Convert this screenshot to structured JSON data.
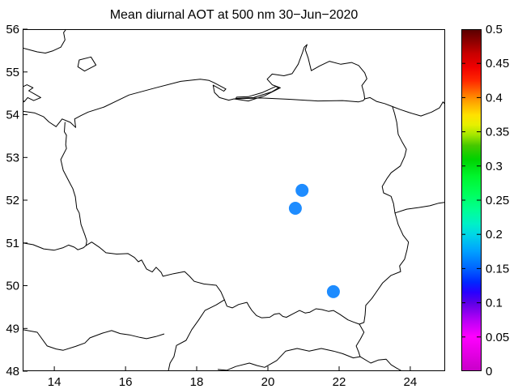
{
  "title": "Mean diurnal AOT at 500 nm 30−Jun−2020",
  "chart_data": {
    "type": "scatter",
    "subtype": "geographic-map-scatter",
    "region": "Poland with Baltic coast and neighbouring country borders",
    "xlabel": "",
    "ylabel": "",
    "xlim": [
      13.11,
      24.98
    ],
    "ylim": [
      48,
      56
    ],
    "xticks": [
      "14",
      "16",
      "18",
      "20",
      "22",
      "24"
    ],
    "xtick_values": [
      14,
      16,
      18,
      20,
      22,
      24
    ],
    "yticks": [
      "56",
      "55",
      "54",
      "53",
      "52",
      "51",
      "50",
      "49",
      "48"
    ],
    "ytick_values": [
      56,
      55,
      54,
      53,
      52,
      51,
      50,
      49,
      48
    ],
    "grid": false,
    "marker_color": "#1E8CFF",
    "marker_radius_px": 8,
    "points": [
      {
        "lon": 20.96,
        "lat": 52.23,
        "aot": 0.15
      },
      {
        "lon": 20.77,
        "lat": 51.81,
        "aot": 0.15
      },
      {
        "lon": 21.84,
        "lat": 49.86,
        "aot": 0.15
      }
    ],
    "colorbar": {
      "min": 0,
      "max": 0.5,
      "tick_labels": [
        "0.5",
        "0.45",
        "0.4",
        "0.35",
        "0.3",
        "0.25",
        "0.2",
        "0.15",
        "0.1",
        "0.05",
        "0"
      ],
      "tick_values": [
        0.5,
        0.45,
        0.4,
        0.35,
        0.3,
        0.25,
        0.2,
        0.15,
        0.1,
        0.05,
        0
      ],
      "position": "right",
      "gradient_stops": [
        [
          0.0,
          "#C800C8"
        ],
        [
          0.05,
          "#FF00FF"
        ],
        [
          0.075,
          "#B400F5"
        ],
        [
          0.1,
          "#5A00E6"
        ],
        [
          0.115,
          "#2800FF"
        ],
        [
          0.13,
          "#0028FF"
        ],
        [
          0.15,
          "#0064FF"
        ],
        [
          0.175,
          "#00A0FF"
        ],
        [
          0.2,
          "#00D7E6"
        ],
        [
          0.215,
          "#00F0C8"
        ],
        [
          0.235,
          "#00FF96"
        ],
        [
          0.26,
          "#00FF5A"
        ],
        [
          0.285,
          "#00F52D"
        ],
        [
          0.31,
          "#00D200"
        ],
        [
          0.33,
          "#46C800"
        ],
        [
          0.345,
          "#A0E600"
        ],
        [
          0.36,
          "#E6F000"
        ],
        [
          0.375,
          "#FFE100"
        ],
        [
          0.395,
          "#FFA000"
        ],
        [
          0.41,
          "#FF6400"
        ],
        [
          0.425,
          "#FF2800"
        ],
        [
          0.445,
          "#F00000"
        ],
        [
          0.465,
          "#C80000"
        ],
        [
          0.48,
          "#960000"
        ],
        [
          0.5,
          "#5A0000"
        ]
      ]
    },
    "map_outlines": {
      "sweden_coast": [
        [
          13.11,
          55.56
        ],
        [
          13.52,
          55.47
        ],
        [
          13.75,
          55.44
        ],
        [
          13.95,
          55.49
        ],
        [
          14.18,
          55.58
        ],
        [
          14.3,
          55.75
        ],
        [
          14.26,
          55.92
        ],
        [
          14.33,
          56.0
        ]
      ],
      "bornholm": [
        [
          14.7,
          55.28
        ],
        [
          14.66,
          55.12
        ],
        [
          14.85,
          55.02
        ],
        [
          15.17,
          55.16
        ],
        [
          15.03,
          55.35
        ],
        [
          14.7,
          55.28
        ]
      ],
      "rugen": [
        [
          13.11,
          54.65
        ],
        [
          13.23,
          54.7
        ],
        [
          13.4,
          54.63
        ],
        [
          13.28,
          54.56
        ],
        [
          13.45,
          54.48
        ],
        [
          13.62,
          54.4
        ],
        [
          13.42,
          54.33
        ],
        [
          13.25,
          54.4
        ],
        [
          13.15,
          54.3
        ],
        [
          13.11,
          54.35
        ]
      ],
      "baltic_coast": [
        [
          13.11,
          54.08
        ],
        [
          13.45,
          54.04
        ],
        [
          13.7,
          53.95
        ],
        [
          13.85,
          53.83
        ],
        [
          14.05,
          53.72
        ],
        [
          14.22,
          53.9
        ],
        [
          14.45,
          53.82
        ],
        [
          14.6,
          53.7
        ],
        [
          14.57,
          53.9
        ],
        [
          14.75,
          53.98
        ],
        [
          14.95,
          54.06
        ],
        [
          15.4,
          54.18
        ],
        [
          16.1,
          54.46
        ],
        [
          16.85,
          54.63
        ],
        [
          17.55,
          54.78
        ],
        [
          18.1,
          54.83
        ],
        [
          18.35,
          54.8
        ],
        [
          18.48,
          54.75
        ],
        [
          18.82,
          54.6
        ],
        [
          18.76,
          54.55
        ],
        [
          18.46,
          54.69
        ],
        [
          18.5,
          54.52
        ],
        [
          18.64,
          54.4
        ],
        [
          18.9,
          54.34
        ],
        [
          19.05,
          54.37
        ],
        [
          19.45,
          54.32
        ],
        [
          19.9,
          54.44
        ],
        [
          20.35,
          54.63
        ],
        [
          20.12,
          54.7
        ],
        [
          19.98,
          54.83
        ],
        [
          20.12,
          54.95
        ],
        [
          20.45,
          54.91
        ],
        [
          20.68,
          54.96
        ],
        [
          20.85,
          55.18
        ],
        [
          20.97,
          55.45
        ],
        [
          21.02,
          55.58
        ],
        [
          21.1,
          55.64
        ],
        [
          21.05,
          55.52
        ],
        [
          21.13,
          55.33
        ],
        [
          21.22,
          55.03
        ],
        [
          21.45,
          55.14
        ],
        [
          21.73,
          55.25
        ],
        [
          22.05,
          55.18
        ],
        [
          22.35,
          55.22
        ],
        [
          22.55,
          55.15
        ],
        [
          22.72,
          54.98
        ],
        [
          22.78,
          54.84
        ],
        [
          22.64,
          54.68
        ],
        [
          22.7,
          54.5
        ],
        [
          22.72,
          54.37
        ]
      ],
      "vistula_lagoon": [
        [
          19.1,
          54.38
        ],
        [
          19.6,
          54.4
        ],
        [
          20.1,
          54.53
        ],
        [
          20.3,
          54.63
        ],
        [
          20.22,
          54.66
        ],
        [
          19.85,
          54.52
        ],
        [
          19.45,
          54.42
        ],
        [
          19.12,
          54.41
        ],
        [
          19.1,
          54.38
        ]
      ],
      "ru_pl_border": [
        [
          19.05,
          54.37
        ],
        [
          19.8,
          54.39
        ],
        [
          20.6,
          54.36
        ],
        [
          21.4,
          54.32
        ],
        [
          22.1,
          54.33
        ],
        [
          22.55,
          54.3
        ],
        [
          22.68,
          54.33
        ],
        [
          22.72,
          54.37
        ]
      ],
      "west_border": [
        [
          14.3,
          53.82
        ],
        [
          14.28,
          53.6
        ],
        [
          14.34,
          53.52
        ],
        [
          14.32,
          53.3
        ],
        [
          14.34,
          53.21
        ],
        [
          14.18,
          52.95
        ],
        [
          14.25,
          52.7
        ],
        [
          14.45,
          52.38
        ],
        [
          14.52,
          52.27
        ],
        [
          14.59,
          52.08
        ],
        [
          14.63,
          51.81
        ],
        [
          14.7,
          51.7
        ],
        [
          14.75,
          51.43
        ],
        [
          14.86,
          51.18
        ],
        [
          14.91,
          51.05
        ],
        [
          14.89,
          50.94
        ]
      ],
      "south_border": [
        [
          14.89,
          50.94
        ],
        [
          15.05,
          51.02
        ],
        [
          15.28,
          50.89
        ],
        [
          15.45,
          50.77
        ],
        [
          15.75,
          50.74
        ],
        [
          16.07,
          50.75
        ],
        [
          16.25,
          50.66
        ],
        [
          16.36,
          50.56
        ],
        [
          16.45,
          50.6
        ],
        [
          16.59,
          50.39
        ],
        [
          16.75,
          50.32
        ],
        [
          16.86,
          50.43
        ],
        [
          17.0,
          50.31
        ],
        [
          17.05,
          50.22
        ],
        [
          17.35,
          50.28
        ],
        [
          17.66,
          50.33
        ],
        [
          17.8,
          50.22
        ],
        [
          17.93,
          50.1
        ],
        [
          18.2,
          50.04
        ],
        [
          18.55,
          50.01
        ],
        [
          18.68,
          49.86
        ],
        [
          18.78,
          49.67
        ],
        [
          18.85,
          49.52
        ],
        [
          19.0,
          49.48
        ],
        [
          19.18,
          49.56
        ],
        [
          19.41,
          49.61
        ],
        [
          19.47,
          49.52
        ],
        [
          19.55,
          49.42
        ],
        [
          19.68,
          49.3
        ],
        [
          19.82,
          49.25
        ],
        [
          20.05,
          49.26
        ],
        [
          20.18,
          49.33
        ],
        [
          20.32,
          49.35
        ],
        [
          20.42,
          49.28
        ],
        [
          20.52,
          49.26
        ],
        [
          20.7,
          49.34
        ],
        [
          20.89,
          49.42
        ],
        [
          21.05,
          49.36
        ],
        [
          21.18,
          49.38
        ],
        [
          21.35,
          49.46
        ],
        [
          21.52,
          49.44
        ],
        [
          21.7,
          49.4
        ],
        [
          21.84,
          49.42
        ],
        [
          22.02,
          49.33
        ],
        [
          22.25,
          49.2
        ],
        [
          22.4,
          49.15
        ],
        [
          22.57,
          49.1
        ]
      ],
      "east_border": [
        [
          22.57,
          49.1
        ],
        [
          22.7,
          49.14
        ],
        [
          22.73,
          49.32
        ],
        [
          22.75,
          49.54
        ],
        [
          22.92,
          49.7
        ],
        [
          23.02,
          49.82
        ],
        [
          23.22,
          50.06
        ],
        [
          23.46,
          50.24
        ],
        [
          23.73,
          50.33
        ],
        [
          23.7,
          50.46
        ],
        [
          23.84,
          50.62
        ],
        [
          23.91,
          50.84
        ],
        [
          23.95,
          51.02
        ],
        [
          23.8,
          51.18
        ],
        [
          23.66,
          51.43
        ],
        [
          23.57,
          51.7
        ],
        [
          23.53,
          51.92
        ],
        [
          23.46,
          52.09
        ],
        [
          23.25,
          52.17
        ],
        [
          23.21,
          52.32
        ],
        [
          23.34,
          52.5
        ],
        [
          23.46,
          52.64
        ],
        [
          23.72,
          52.8
        ],
        [
          23.84,
          53.02
        ],
        [
          23.89,
          53.19
        ],
        [
          23.78,
          53.35
        ],
        [
          23.66,
          53.54
        ],
        [
          23.62,
          53.82
        ],
        [
          23.56,
          54.02
        ],
        [
          23.5,
          54.19
        ],
        [
          23.28,
          54.26
        ],
        [
          23.05,
          54.31
        ],
        [
          22.87,
          54.4
        ],
        [
          22.72,
          54.37
        ]
      ],
      "by_ua_border": [
        [
          23.57,
          51.7
        ],
        [
          23.9,
          51.79
        ],
        [
          24.25,
          51.83
        ],
        [
          24.55,
          51.87
        ],
        [
          24.8,
          51.93
        ],
        [
          24.98,
          51.95
        ]
      ],
      "lt_by_border": [
        [
          23.5,
          54.19
        ],
        [
          23.72,
          54.12
        ],
        [
          23.97,
          54.05
        ],
        [
          24.3,
          53.97
        ],
        [
          24.6,
          54.06
        ],
        [
          24.82,
          54.16
        ],
        [
          24.92,
          54.3
        ],
        [
          24.98,
          54.24
        ]
      ],
      "de_cz_border": [
        [
          13.11,
          51.0
        ],
        [
          13.4,
          50.96
        ],
        [
          13.7,
          50.86
        ],
        [
          14.0,
          50.83
        ],
        [
          14.25,
          50.89
        ],
        [
          14.4,
          50.95
        ],
        [
          14.56,
          50.9
        ],
        [
          14.66,
          50.84
        ],
        [
          14.82,
          50.89
        ],
        [
          14.89,
          50.94
        ]
      ],
      "de_at_cz_border": [
        [
          13.11,
          48.97
        ],
        [
          13.52,
          48.91
        ],
        [
          13.8,
          48.59
        ],
        [
          14.05,
          48.52
        ],
        [
          14.25,
          48.49
        ],
        [
          14.6,
          48.58
        ],
        [
          14.86,
          48.66
        ],
        [
          15.0,
          48.78
        ],
        [
          15.35,
          48.89
        ],
        [
          15.61,
          48.95
        ],
        [
          15.85,
          48.88
        ],
        [
          16.11,
          48.85
        ],
        [
          16.4,
          48.79
        ],
        [
          16.59,
          48.76
        ],
        [
          16.85,
          48.81
        ],
        [
          17.08,
          48.87
        ]
      ],
      "cz_sk_at_border": [
        [
          18.78,
          49.67
        ],
        [
          18.55,
          49.55
        ],
        [
          18.23,
          49.42
        ],
        [
          18.05,
          49.19
        ],
        [
          17.86,
          48.97
        ],
        [
          17.7,
          48.72
        ],
        [
          17.43,
          48.6
        ],
        [
          17.36,
          48.34
        ],
        [
          17.25,
          48.19
        ],
        [
          17.2,
          48.0
        ]
      ],
      "sk_hu_border": [
        [
          18.6,
          48.04
        ],
        [
          18.84,
          48.02
        ],
        [
          19.1,
          48.11
        ],
        [
          19.48,
          48.19
        ],
        [
          19.7,
          48.13
        ],
        [
          19.91,
          48.09
        ],
        [
          20.25,
          48.25
        ],
        [
          20.5,
          48.47
        ],
        [
          20.82,
          48.53
        ],
        [
          21.16,
          48.47
        ],
        [
          21.5,
          48.53
        ],
        [
          21.84,
          48.47
        ],
        [
          22.1,
          48.41
        ],
        [
          22.4,
          48.31
        ],
        [
          22.59,
          48.34
        ]
      ],
      "sk_ua_border": [
        [
          22.57,
          49.1
        ],
        [
          22.7,
          48.91
        ],
        [
          22.6,
          48.75
        ],
        [
          22.48,
          48.59
        ],
        [
          22.55,
          48.45
        ],
        [
          22.59,
          48.34
        ]
      ],
      "ua_hu_border": [
        [
          22.59,
          48.34
        ],
        [
          22.89,
          48.19
        ],
        [
          23.1,
          48.26
        ],
        [
          23.32,
          48.28
        ],
        [
          23.46,
          48.15
        ],
        [
          23.6,
          48.08
        ],
        [
          23.77,
          48.0
        ]
      ]
    },
    "line_color": "#000000",
    "background_color": "#FFFFFF"
  }
}
